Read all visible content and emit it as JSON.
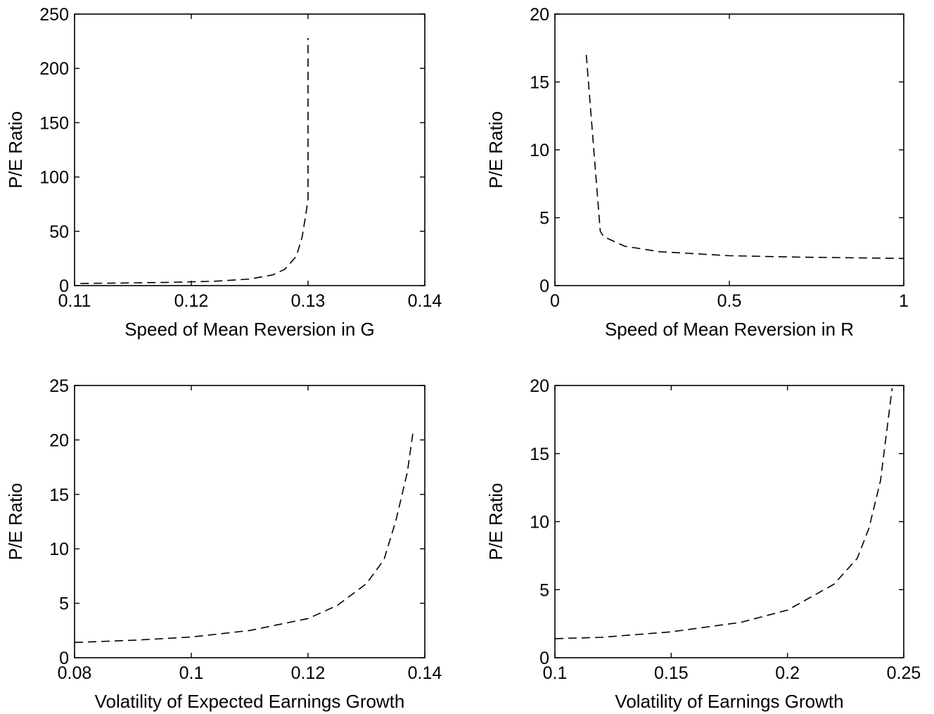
{
  "chart_data": [
    {
      "type": "line",
      "xlabel": "Speed of Mean Reversion in G",
      "ylabel": "P/E Ratio",
      "xlim": [
        0.11,
        0.14
      ],
      "ylim": [
        0,
        250
      ],
      "xticks": [
        "0.11",
        "0.12",
        "0.13",
        "0.14"
      ],
      "yticks": [
        "0",
        "50",
        "100",
        "150",
        "200",
        "250"
      ],
      "grid": false,
      "series": [
        {
          "style": "dashed",
          "x": [
            0.1105,
            0.114,
            0.118,
            0.122,
            0.125,
            0.127,
            0.128,
            0.129,
            0.1295,
            0.1298,
            0.13,
            0.13,
            0.13
          ],
          "y": [
            2,
            2.3,
            3,
            4,
            6,
            10,
            15,
            27,
            45,
            65,
            80,
            150,
            228
          ]
        }
      ]
    },
    {
      "type": "line",
      "xlabel": "Speed of Mean Reversion in R",
      "ylabel": "P/E Ratio",
      "xlim": [
        0,
        1
      ],
      "ylim": [
        0,
        20
      ],
      "xticks": [
        "0",
        "0.5",
        "1"
      ],
      "yticks": [
        "0",
        "5",
        "10",
        "15",
        "20"
      ],
      "grid": false,
      "series": [
        {
          "style": "dashed",
          "x": [
            0.09,
            0.13,
            0.14,
            0.2,
            0.3,
            0.5,
            0.7,
            1.0
          ],
          "y": [
            17,
            4,
            3.6,
            2.9,
            2.5,
            2.2,
            2.1,
            2.0
          ]
        }
      ]
    },
    {
      "type": "line",
      "xlabel": "Volatility of Expected Earnings Growth",
      "ylabel": "P/E Ratio",
      "xlim": [
        0.08,
        0.14
      ],
      "ylim": [
        0,
        25
      ],
      "xticks": [
        "0.08",
        "0.1",
        "0.12",
        "0.14"
      ],
      "yticks": [
        "0",
        "5",
        "10",
        "15",
        "20",
        "25"
      ],
      "grid": false,
      "series": [
        {
          "style": "dashed",
          "x": [
            0.08,
            0.09,
            0.1,
            0.11,
            0.12,
            0.125,
            0.13,
            0.133,
            0.135,
            0.137,
            0.138
          ],
          "y": [
            1.4,
            1.6,
            1.9,
            2.5,
            3.6,
            4.8,
            6.8,
            9.0,
            12.5,
            17.0,
            20.8
          ]
        }
      ]
    },
    {
      "type": "line",
      "xlabel": "Volatility of Earnings Growth",
      "ylabel": "P/E Ratio",
      "xlim": [
        0.1,
        0.25
      ],
      "ylim": [
        0,
        20
      ],
      "xticks": [
        "0.1",
        "0.15",
        "0.2",
        "0.25"
      ],
      "yticks": [
        "0",
        "5",
        "10",
        "15",
        "20"
      ],
      "grid": false,
      "series": [
        {
          "style": "dashed",
          "x": [
            0.1,
            0.12,
            0.15,
            0.18,
            0.2,
            0.22,
            0.23,
            0.235,
            0.24,
            0.245
          ],
          "y": [
            1.4,
            1.5,
            1.9,
            2.6,
            3.5,
            5.4,
            7.3,
            9.5,
            13.0,
            19.8
          ]
        }
      ]
    }
  ]
}
